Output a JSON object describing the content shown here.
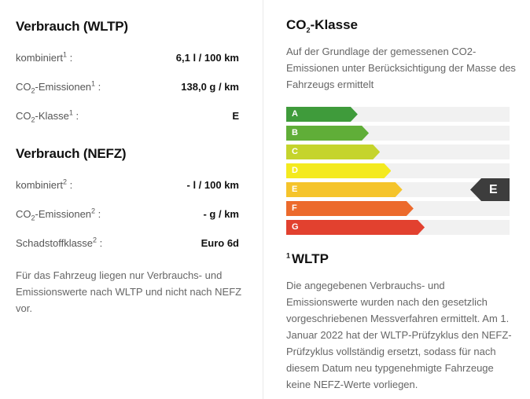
{
  "wltp": {
    "title": "Verbrauch (WLTP)",
    "rows": [
      {
        "label": "kombiniert",
        "sup": "1",
        "value": "6,1 l / 100 km"
      },
      {
        "label_pre": "CO",
        "label_sub": "2",
        "label_post": "-Emissionen",
        "sup": "1",
        "value": "138,0 g / km"
      },
      {
        "label_pre": "CO",
        "label_sub": "2",
        "label_post": "-Klasse",
        "sup": "1",
        "value": "E"
      }
    ]
  },
  "nefz": {
    "title": "Verbrauch (NEFZ)",
    "rows": [
      {
        "label": "kombiniert",
        "sup": "2",
        "value": "- l / 100 km"
      },
      {
        "label_pre": "CO",
        "label_sub": "2",
        "label_post": "-Emissionen",
        "sup": "2",
        "value": "- g / km"
      },
      {
        "label": "Schadstoffklasse",
        "sup": "2",
        "value": "Euro 6d"
      }
    ]
  },
  "left_note": "Für das Fahrzeug liegen nur Verbrauchs- und Emissionswerte nach WLTP und nicht nach NEFZ vor.",
  "co2_class": {
    "title_pre": "CO",
    "title_sub": "2",
    "title_post": "-Klasse",
    "description": "Auf der Grundlage der gemessenen CO2-Emissionen unter Berücksichtigung der Masse des Fahrzeugs ermittelt",
    "classes": [
      {
        "letter": "A",
        "color": "#3f9b3b",
        "fill": 0.32
      },
      {
        "letter": "B",
        "color": "#60ae38",
        "fill": 0.37
      },
      {
        "letter": "C",
        "color": "#c5d42c",
        "fill": 0.42
      },
      {
        "letter": "D",
        "color": "#f4ea1f",
        "fill": 0.47
      },
      {
        "letter": "E",
        "color": "#f5c42b",
        "fill": 0.52
      },
      {
        "letter": "F",
        "color": "#ec6a2c",
        "fill": 0.57
      },
      {
        "letter": "G",
        "color": "#e2412f",
        "fill": 0.62
      }
    ],
    "current": "E"
  },
  "wltp_footnote": {
    "sup": "1",
    "title": "WLTP",
    "text": "Die angegebenen Verbrauchs- und Emissionswerte wurden nach den gesetzlich vorgeschriebenen Messverfahren ermittelt. Am 1. Januar 2022 hat der WLTP-Prüfzyklus den NEFZ-Prüfzyklus vollständig ersetzt, sodass für nach diesem Datum neu typgenehmigte Fahrzeuge keine NEFZ-Werte vorliegen."
  }
}
